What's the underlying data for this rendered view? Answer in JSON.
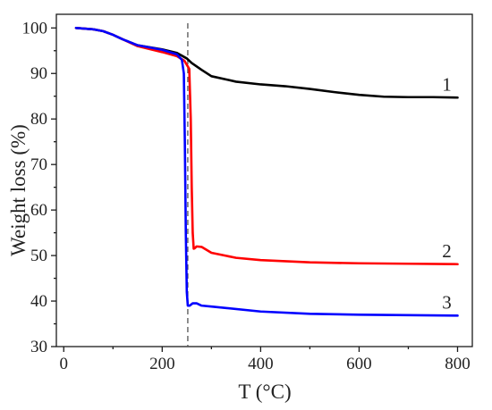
{
  "chart_data": {
    "type": "line",
    "title": "",
    "xlabel": "T (°C)",
    "ylabel": "Weight loss (%)",
    "xlim": [
      -15,
      830
    ],
    "ylim": [
      30,
      103
    ],
    "xticks": [
      0,
      200,
      400,
      600,
      800
    ],
    "yticks": [
      30,
      40,
      50,
      60,
      70,
      80,
      90,
      100
    ],
    "grid": false,
    "reference_line_x": 252,
    "series": [
      {
        "name": "1",
        "color": "#000000",
        "x": [
          25,
          60,
          80,
          100,
          120,
          150,
          200,
          230,
          250,
          260,
          280,
          300,
          350,
          400,
          450,
          500,
          550,
          600,
          650,
          700,
          750,
          800
        ],
        "y": [
          100,
          99.7,
          99.3,
          98.5,
          97.5,
          96.2,
          95.3,
          94.5,
          93.3,
          92.3,
          90.8,
          89.4,
          88.2,
          87.6,
          87.2,
          86.6,
          85.9,
          85.3,
          84.9,
          84.8,
          84.8,
          84.7
        ]
      },
      {
        "name": "2",
        "color": "#ff0000",
        "x": [
          25,
          60,
          80,
          100,
          120,
          150,
          200,
          230,
          245,
          255,
          258,
          260,
          262,
          264,
          266,
          270,
          280,
          300,
          350,
          400,
          500,
          600,
          700,
          800
        ],
        "y": [
          100,
          99.7,
          99.3,
          98.5,
          97.5,
          96,
          94.7,
          93.8,
          92.8,
          91,
          80,
          65,
          55,
          51.5,
          51.6,
          52,
          51.9,
          50.6,
          49.5,
          49,
          48.5,
          48.3,
          48.2,
          48.1
        ]
      },
      {
        "name": "3",
        "color": "#0000ff",
        "x": [
          25,
          60,
          80,
          100,
          120,
          150,
          200,
          230,
          240,
          244,
          246,
          248,
          250,
          252,
          256,
          262,
          270,
          280,
          300,
          400,
          500,
          600,
          700,
          800
        ],
        "y": [
          100,
          99.7,
          99.3,
          98.5,
          97.5,
          96.2,
          95.2,
          94.2,
          93,
          90,
          75,
          55,
          42,
          39,
          39,
          39.5,
          39.5,
          39,
          38.8,
          37.7,
          37.2,
          37,
          36.9,
          36.8
        ]
      }
    ],
    "annotations": [
      {
        "text": "1",
        "series": "1"
      },
      {
        "text": "2",
        "series": "2"
      },
      {
        "text": "3",
        "series": "3"
      }
    ]
  }
}
